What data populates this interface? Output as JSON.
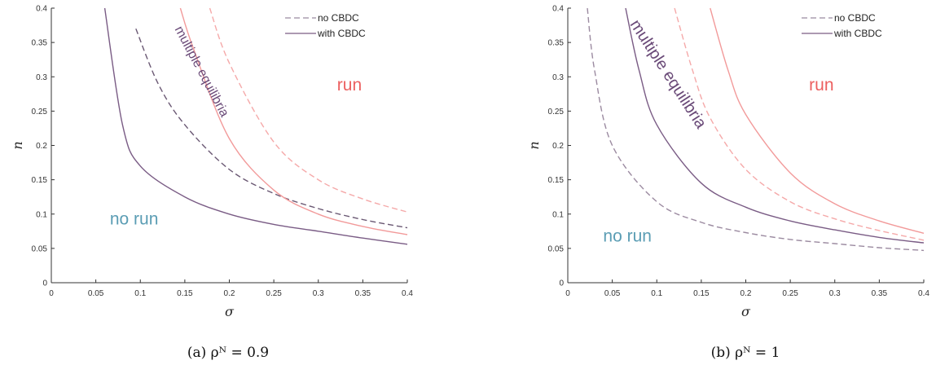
{
  "chart_data": [
    {
      "type": "line",
      "caption": "(a) ρᴺ = 0.9",
      "xlabel": "σ",
      "ylabel": "n",
      "xlim": [
        0,
        0.4
      ],
      "ylim": [
        0,
        0.4
      ],
      "xticks": [
        "0",
        "0.05",
        "0.1",
        "0.15",
        "0.2",
        "0.25",
        "0.3",
        "0.35",
        "0.4"
      ],
      "yticks": [
        "0",
        "0.05",
        "0.1",
        "0.15",
        "0.2",
        "0.25",
        "0.3",
        "0.35",
        "0.4"
      ],
      "grid": false,
      "legend_position": "top-right",
      "legend": [
        {
          "label": "no CBDC",
          "style": "dashed",
          "color": "#9b8aa0"
        },
        {
          "label": "with CBDC",
          "style": "solid",
          "color": "#7a5c85"
        }
      ],
      "series": [
        {
          "style": "dashed",
          "color": "#6a5873",
          "x": [
            0.095,
            0.12,
            0.15,
            0.2,
            0.25,
            0.3,
            0.35,
            0.4
          ],
          "y": [
            0.37,
            0.29,
            0.23,
            0.165,
            0.13,
            0.108,
            0.092,
            0.08
          ]
        },
        {
          "style": "solid",
          "color": "#7a5c85",
          "x": [
            0.06,
            0.08,
            0.1,
            0.15,
            0.2,
            0.25,
            0.3,
            0.35,
            0.4
          ],
          "y": [
            0.4,
            0.23,
            0.17,
            0.125,
            0.1,
            0.085,
            0.075,
            0.065,
            0.056
          ]
        },
        {
          "style": "solid",
          "color": "#f29a9a",
          "x": [
            0.145,
            0.16,
            0.2,
            0.25,
            0.3,
            0.35,
            0.4
          ],
          "y": [
            0.4,
            0.34,
            0.21,
            0.135,
            0.1,
            0.082,
            0.07
          ]
        },
        {
          "style": "dashed",
          "color": "#f5a9a9",
          "x": [
            0.178,
            0.2,
            0.25,
            0.3,
            0.35,
            0.4
          ],
          "y": [
            0.4,
            0.32,
            0.205,
            0.15,
            0.122,
            0.103
          ]
        }
      ],
      "annotations": [
        {
          "text": "multiple equilibria",
          "x": 0.165,
          "y": 0.305,
          "angle": 62,
          "color": "#6a4a78",
          "size": 16
        },
        {
          "text": "run",
          "x": 0.335,
          "y": 0.28,
          "angle": 0,
          "color": "#ec6060",
          "size": 21
        },
        {
          "text": "no run",
          "x": 0.093,
          "y": 0.085,
          "angle": 0,
          "color": "#5b9db4",
          "size": 21
        }
      ]
    },
    {
      "type": "line",
      "caption": "(b) ρᴺ = 1",
      "xlabel": "σ",
      "ylabel": "n",
      "xlim": [
        0,
        0.4
      ],
      "ylim": [
        0,
        0.4
      ],
      "xticks": [
        "0",
        "0.05",
        "0.1",
        "0.15",
        "0.2",
        "0.25",
        "0.3",
        "0.35",
        "0.4"
      ],
      "yticks": [
        "0",
        "0.05",
        "0.1",
        "0.15",
        "0.2",
        "0.25",
        "0.3",
        "0.35",
        "0.4"
      ],
      "grid": false,
      "legend_position": "top-right",
      "legend": [
        {
          "label": "no CBDC",
          "style": "dashed",
          "color": "#9b8aa0"
        },
        {
          "label": "with CBDC",
          "style": "solid",
          "color": "#7a5c85"
        }
      ],
      "series": [
        {
          "style": "dashed",
          "color": "#9b8aa0",
          "x": [
            0.022,
            0.03,
            0.05,
            0.1,
            0.15,
            0.2,
            0.25,
            0.3,
            0.35,
            0.4
          ],
          "y": [
            0.4,
            0.31,
            0.2,
            0.118,
            0.088,
            0.073,
            0.063,
            0.057,
            0.051,
            0.047
          ]
        },
        {
          "style": "solid",
          "color": "#7a5c85",
          "x": [
            0.065,
            0.08,
            0.1,
            0.15,
            0.2,
            0.25,
            0.3,
            0.35,
            0.4
          ],
          "y": [
            0.4,
            0.31,
            0.23,
            0.145,
            0.11,
            0.09,
            0.077,
            0.066,
            0.058
          ]
        },
        {
          "style": "dashed",
          "color": "#f5a9a9",
          "x": [
            0.12,
            0.14,
            0.16,
            0.2,
            0.25,
            0.3,
            0.35,
            0.4
          ],
          "y": [
            0.4,
            0.31,
            0.24,
            0.165,
            0.118,
            0.093,
            0.076,
            0.062
          ]
        },
        {
          "style": "solid",
          "color": "#f29a9a",
          "x": [
            0.16,
            0.18,
            0.2,
            0.25,
            0.3,
            0.35,
            0.4
          ],
          "y": [
            0.4,
            0.31,
            0.245,
            0.16,
            0.115,
            0.09,
            0.072
          ]
        }
      ],
      "annotations": [
        {
          "text": "multiple equilibria",
          "x": 0.108,
          "y": 0.3,
          "angle": 57,
          "color": "#6a4a78",
          "size": 20
        },
        {
          "text": "run",
          "x": 0.285,
          "y": 0.28,
          "angle": 0,
          "color": "#ec6060",
          "size": 21
        },
        {
          "text": "no run",
          "x": 0.067,
          "y": 0.06,
          "angle": 0,
          "color": "#5b9db4",
          "size": 21
        }
      ]
    }
  ]
}
